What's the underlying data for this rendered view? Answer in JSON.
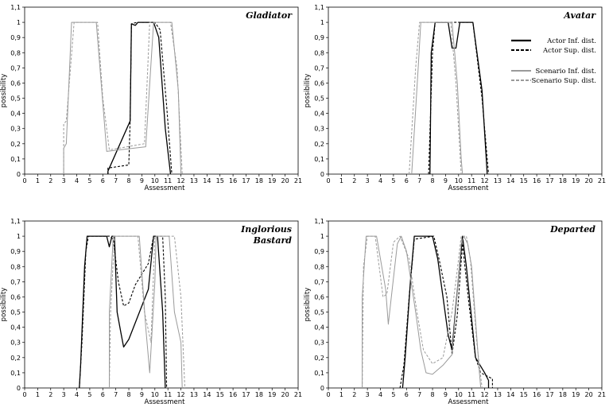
{
  "chart_data": [
    {
      "type": "line",
      "title_lines": [
        "Gladiator"
      ],
      "xlabel": "Assessment",
      "ylabel": "possibility",
      "xlim": [
        0,
        21
      ],
      "ylim": [
        0,
        1.1
      ],
      "xticks": [
        "0",
        "1",
        "2",
        "3",
        "4",
        "5",
        "6",
        "7",
        "8",
        "9",
        "10",
        "11",
        "12",
        "13",
        "14",
        "15",
        "16",
        "17",
        "18",
        "19",
        "20",
        "21"
      ],
      "yticks": [
        "0",
        "0,1",
        "0,2",
        "0,3",
        "0,4",
        "0,5",
        "0,6",
        "0,7",
        "0,8",
        "0,9",
        "1",
        "1,1"
      ],
      "grid": false,
      "series": [
        {
          "key": "actor_inf",
          "points": [
            [
              6.4,
              0
            ],
            [
              6.4,
              0.02
            ],
            [
              8.1,
              0.35
            ],
            [
              8.2,
              0.99
            ],
            [
              8.5,
              0.98
            ],
            [
              8.7,
              1
            ],
            [
              9.9,
              1
            ],
            [
              10.3,
              0.9
            ],
            [
              10.8,
              0.3
            ],
            [
              11.2,
              0
            ]
          ]
        },
        {
          "key": "actor_sup",
          "points": [
            [
              6.4,
              0
            ],
            [
              6.4,
              0.04
            ],
            [
              8.0,
              0.06
            ],
            [
              8.1,
              0.35
            ],
            [
              8.2,
              0.99
            ],
            [
              8.6,
              1
            ],
            [
              10.0,
              1
            ],
            [
              10.4,
              0.95
            ],
            [
              10.9,
              0.45
            ],
            [
              11.3,
              0
            ]
          ]
        },
        {
          "key": "scen_inf",
          "points": [
            [
              3,
              0
            ],
            [
              3,
              0.17
            ],
            [
              3.2,
              0.2
            ],
            [
              3.6,
              1
            ],
            [
              5.5,
              1
            ],
            [
              6.3,
              0.15
            ],
            [
              9.3,
              0.18
            ],
            [
              9.9,
              1
            ],
            [
              11.3,
              1
            ],
            [
              11.8,
              0.55
            ],
            [
              12.0,
              0
            ]
          ]
        },
        {
          "key": "scen_sup",
          "points": [
            [
              3,
              0
            ],
            [
              3,
              0.33
            ],
            [
              3.2,
              0.35
            ],
            [
              3.8,
              1
            ],
            [
              5.6,
              1
            ],
            [
              6.0,
              0.5
            ],
            [
              6.5,
              0.16
            ],
            [
              9.2,
              0.2
            ],
            [
              9.6,
              1
            ],
            [
              11.2,
              1
            ],
            [
              11.7,
              0.7
            ],
            [
              12.1,
              0
            ]
          ]
        }
      ]
    },
    {
      "type": "line",
      "title_lines": [
        "Avatar"
      ],
      "xlabel": "Assessment",
      "ylabel": "possibility",
      "xlim": [
        0,
        21
      ],
      "ylim": [
        0,
        1.1
      ],
      "xticks": [
        "0",
        "1",
        "2",
        "3",
        "4",
        "5",
        "6",
        "7",
        "8",
        "9",
        "10",
        "11",
        "12",
        "13",
        "14",
        "15",
        "16",
        "17",
        "18",
        "19",
        "20",
        "21"
      ],
      "yticks": [
        "0",
        "0,1",
        "0,2",
        "0,3",
        "0,4",
        "0,5",
        "0,6",
        "0,7",
        "0,8",
        "0,9",
        "1",
        "1,1"
      ],
      "grid": false,
      "legend": [
        "Actor Inf. dist.",
        "Actor Sup. dist.",
        "Scenario Inf. dist.",
        "Scenario Sup. dist."
      ],
      "legend_position": "right",
      "series": [
        {
          "key": "actor_inf",
          "points": [
            [
              7.8,
              0
            ],
            [
              7.9,
              0.8
            ],
            [
              8.2,
              1
            ],
            [
              9.2,
              1
            ],
            [
              9.5,
              0.83
            ],
            [
              9.8,
              0.83
            ],
            [
              10.1,
              1
            ],
            [
              11.1,
              1
            ],
            [
              11.8,
              0.55
            ],
            [
              12.2,
              0
            ]
          ]
        },
        {
          "key": "actor_sup",
          "points": [
            [
              7.7,
              0
            ],
            [
              8.0,
              0.8
            ],
            [
              8.2,
              1
            ],
            [
              11.1,
              1
            ],
            [
              11.8,
              0.5
            ],
            [
              12.3,
              0
            ]
          ]
        },
        {
          "key": "scen_inf",
          "points": [
            [
              6.4,
              0
            ],
            [
              6.9,
              0.7
            ],
            [
              7.1,
              1
            ],
            [
              9.5,
              1
            ],
            [
              9.9,
              0.6
            ],
            [
              10.2,
              0.1
            ],
            [
              10.3,
              0
            ]
          ]
        },
        {
          "key": "scen_sup",
          "points": [
            [
              6.2,
              0
            ],
            [
              6.7,
              0.7
            ],
            [
              7.0,
              1
            ],
            [
              9.4,
              1
            ],
            [
              9.8,
              0.6
            ],
            [
              10.2,
              0
            ]
          ]
        }
      ]
    },
    {
      "type": "line",
      "title_lines": [
        "Inglorious",
        "Bastard"
      ],
      "xlabel": "Assessment",
      "ylabel": "possibility",
      "xlim": [
        0,
        21
      ],
      "ylim": [
        0,
        1.1
      ],
      "xticks": [
        "0",
        "1",
        "2",
        "3",
        "4",
        "5",
        "6",
        "7",
        "8",
        "9",
        "10",
        "11",
        "12",
        "13",
        "14",
        "15",
        "16",
        "17",
        "18",
        "19",
        "20",
        "21"
      ],
      "yticks": [
        "0",
        "0,1",
        "0,2",
        "0,3",
        "0,4",
        "0,5",
        "0,6",
        "0,7",
        "0,8",
        "0,9",
        "1",
        "1,1"
      ],
      "grid": false,
      "series": [
        {
          "key": "actor_inf",
          "points": [
            [
              4.2,
              0
            ],
            [
              4.3,
              0.15
            ],
            [
              4.6,
              0.8
            ],
            [
              4.8,
              1
            ],
            [
              6.3,
              1
            ],
            [
              6.5,
              0.93
            ],
            [
              6.7,
              1
            ],
            [
              6.9,
              1
            ],
            [
              7.1,
              0.5
            ],
            [
              7.4,
              0.36
            ],
            [
              7.6,
              0.27
            ],
            [
              8.0,
              0.32
            ],
            [
              9.5,
              0.65
            ],
            [
              9.9,
              1
            ],
            [
              10.2,
              1
            ],
            [
              10.6,
              0.5
            ],
            [
              10.8,
              0
            ]
          ]
        },
        {
          "key": "actor_sup",
          "points": [
            [
              4.2,
              0
            ],
            [
              4.4,
              0.3
            ],
            [
              4.7,
              0.9
            ],
            [
              4.9,
              1
            ],
            [
              6.5,
              1
            ],
            [
              6.8,
              0.98
            ],
            [
              7.2,
              0.7
            ],
            [
              7.6,
              0.54
            ],
            [
              8.0,
              0.56
            ],
            [
              8.5,
              0.68
            ],
            [
              9.0,
              0.75
            ],
            [
              9.5,
              0.82
            ],
            [
              9.9,
              1
            ],
            [
              10.6,
              1
            ],
            [
              10.8,
              0.6
            ],
            [
              10.9,
              0
            ]
          ]
        },
        {
          "key": "scen_inf",
          "points": [
            [
              6.5,
              0
            ],
            [
              6.5,
              0.5
            ],
            [
              6.8,
              1
            ],
            [
              8.8,
              1
            ],
            [
              9.3,
              0.4
            ],
            [
              9.6,
              0.1
            ],
            [
              10.0,
              0.7
            ],
            [
              10.1,
              1
            ],
            [
              11.1,
              1
            ],
            [
              11.5,
              0.5
            ],
            [
              12.0,
              0.3
            ],
            [
              12.1,
              0
            ]
          ]
        },
        {
          "key": "scen_sup",
          "points": [
            [
              6.5,
              0
            ],
            [
              6.6,
              0.5
            ],
            [
              6.9,
              1
            ],
            [
              8.7,
              1
            ],
            [
              9.2,
              0.5
            ],
            [
              9.7,
              0.3
            ],
            [
              10.0,
              1
            ],
            [
              11.5,
              1
            ],
            [
              12.0,
              0.6
            ],
            [
              12.3,
              0
            ]
          ]
        }
      ]
    },
    {
      "type": "line",
      "title_lines": [
        "Departed"
      ],
      "xlabel": "Assessment",
      "ylabel": "possibility",
      "xlim": [
        0,
        21
      ],
      "ylim": [
        0,
        1.1
      ],
      "xticks": [
        "0",
        "1",
        "2",
        "3",
        "4",
        "5",
        "6",
        "7",
        "8",
        "9",
        "10",
        "11",
        "12",
        "13",
        "14",
        "15",
        "16",
        "17",
        "18",
        "19",
        "20",
        "21"
      ],
      "yticks": [
        "0",
        "0,1",
        "0,2",
        "0,3",
        "0,4",
        "0,5",
        "0,6",
        "0,7",
        "0,8",
        "0,9",
        "1",
        "1,1"
      ],
      "grid": false,
      "series": [
        {
          "key": "actor_inf",
          "points": [
            [
              5.7,
              0
            ],
            [
              5.9,
              0.2
            ],
            [
              6.3,
              0.7
            ],
            [
              6.6,
              1
            ],
            [
              8.0,
              1
            ],
            [
              8.4,
              0.85
            ],
            [
              8.8,
              0.6
            ],
            [
              9.2,
              0.35
            ],
            [
              9.5,
              0.25
            ],
            [
              9.8,
              0.55
            ],
            [
              10.3,
              1
            ],
            [
              10.6,
              0.8
            ],
            [
              11.3,
              0.2
            ],
            [
              12.0,
              0.1
            ],
            [
              12.3,
              0.05
            ],
            [
              12.3,
              0
            ]
          ]
        },
        {
          "key": "actor_sup",
          "points": [
            [
              5.5,
              0
            ],
            [
              5.8,
              0.15
            ],
            [
              6.2,
              0.6
            ],
            [
              6.6,
              0.98
            ],
            [
              8.1,
              1
            ],
            [
              8.5,
              0.85
            ],
            [
              9.1,
              0.6
            ],
            [
              9.5,
              0.22
            ],
            [
              9.9,
              0.48
            ],
            [
              10.3,
              0.95
            ],
            [
              10.8,
              0.55
            ],
            [
              11.3,
              0.2
            ],
            [
              11.7,
              0.1
            ],
            [
              12.6,
              0.06
            ],
            [
              12.6,
              0
            ]
          ]
        },
        {
          "key": "scen_inf",
          "points": [
            [
              2.6,
              0
            ],
            [
              2.6,
              0.6
            ],
            [
              2.9,
              1
            ],
            [
              3.7,
              1
            ],
            [
              4.4,
              0.65
            ],
            [
              4.6,
              0.42
            ],
            [
              4.9,
              0.65
            ],
            [
              5.3,
              0.95
            ],
            [
              5.6,
              1
            ],
            [
              6.0,
              0.9
            ],
            [
              6.7,
              0.5
            ],
            [
              7.1,
              0.25
            ],
            [
              7.5,
              0.1
            ],
            [
              8.0,
              0.09
            ],
            [
              8.8,
              0.15
            ],
            [
              9.5,
              0.22
            ],
            [
              10.2,
              0.95
            ],
            [
              10.4,
              1
            ],
            [
              10.7,
              0.95
            ],
            [
              11.0,
              0.8
            ],
            [
              11.6,
              0.1
            ],
            [
              11.7,
              0
            ]
          ]
        },
        {
          "key": "scen_sup",
          "points": [
            [
              2.6,
              0
            ],
            [
              2.7,
              0.8
            ],
            [
              3.0,
              1
            ],
            [
              3.6,
              1
            ],
            [
              4.2,
              0.6
            ],
            [
              4.5,
              0.62
            ],
            [
              5.0,
              0.96
            ],
            [
              5.5,
              1
            ],
            [
              6.2,
              0.85
            ],
            [
              6.8,
              0.5
            ],
            [
              7.3,
              0.25
            ],
            [
              8.0,
              0.16
            ],
            [
              8.8,
              0.2
            ],
            [
              9.5,
              0.5
            ],
            [
              9.9,
              0.78
            ],
            [
              10.2,
              1
            ],
            [
              10.6,
              1
            ],
            [
              10.9,
              0.85
            ],
            [
              11.4,
              0.3
            ],
            [
              11.8,
              0
            ]
          ]
        }
      ]
    }
  ],
  "legend": {
    "actor_inf": "Actor Inf. dist.",
    "actor_sup": "Actor Sup. dist.",
    "scen_inf": "Scenario Inf. dist.",
    "scen_sup": "Scenario Sup. dist."
  },
  "colors": {
    "actor": "#000000",
    "scenario": "#9a9a9a",
    "frame": "#000000"
  }
}
